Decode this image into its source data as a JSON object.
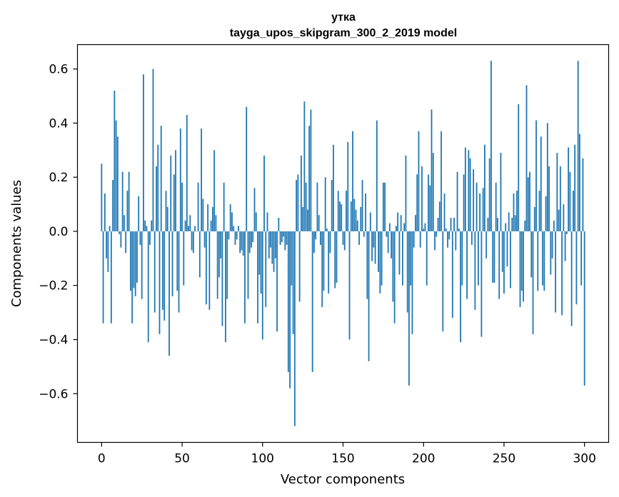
{
  "chart_data": {
    "type": "bar",
    "title": "утка",
    "subtitle": "tayga_upos_skipgram_300_2_2019 model",
    "xlabel": "Vector components",
    "ylabel": "Components values",
    "xlim": [
      -15,
      315
    ],
    "ylim": [
      -0.78,
      0.69
    ],
    "xticks": [
      0,
      50,
      100,
      150,
      200,
      250,
      300
    ],
    "yticks": [
      -0.6,
      -0.4,
      -0.2,
      0.0,
      0.2,
      0.4,
      0.6
    ],
    "ytick_labels": [
      "−0.6",
      "−0.4",
      "−0.2",
      "0.0",
      "0.2",
      "0.4",
      "0.6"
    ],
    "bar_color": "#1f77b4",
    "grid": false,
    "values": [
      0.25,
      -0.34,
      0.14,
      -0.1,
      -0.15,
      0.02,
      -0.34,
      0.19,
      0.52,
      0.41,
      0.35,
      -0.01,
      -0.06,
      0.22,
      0.06,
      -0.08,
      0.15,
      0.22,
      -0.22,
      -0.34,
      -0.21,
      -0.24,
      -0.19,
      0.13,
      -0.05,
      -0.25,
      0.58,
      0.04,
      0.02,
      -0.41,
      -0.05,
      0.04,
      0.6,
      -0.3,
      0.24,
      0.32,
      -0.38,
      0.39,
      -0.29,
      -0.33,
      0.15,
      0.09,
      -0.46,
      0.28,
      -0.24,
      0.21,
      0.3,
      -0.22,
      -0.3,
      0.38,
      0.18,
      -0.2,
      0.04,
      0.43,
      0.02,
      0.06,
      -0.07,
      -0.08,
      0.02,
      0.0,
      0.18,
      -0.17,
      0.38,
      0.12,
      -0.06,
      -0.27,
      0.1,
      -0.29,
      0.04,
      0.09,
      0.3,
      0.06,
      -0.25,
      -0.17,
      -0.1,
      -0.35,
      0.18,
      -0.41,
      -0.25,
      -0.03,
      0.1,
      0.07,
      0.02,
      -0.05,
      -0.03,
      0.02,
      -0.08,
      -0.07,
      -0.09,
      -0.34,
      0.46,
      -0.25,
      -0.08,
      -0.06,
      -0.04,
      0.16,
      0.07,
      -0.34,
      -0.16,
      -0.23,
      -0.4,
      0.28,
      -0.28,
      0.07,
      -0.1,
      -0.06,
      -0.12,
      -0.15,
      -0.1,
      -0.37,
      0.05,
      -0.05,
      -0.04,
      -0.02,
      -0.07,
      -0.05,
      -0.52,
      -0.58,
      -0.2,
      -0.38,
      -0.72,
      0.19,
      0.21,
      -0.26,
      0.28,
      0.09,
      0.48,
      0.18,
      0.08,
      0.39,
      0.45,
      -0.52,
      -0.08,
      -0.03,
      0.18,
      0.06,
      -0.05,
      -0.28,
      -0.22,
      0.2,
      0.01,
      -0.23,
      -0.08,
      0.19,
      0.32,
      -0.21,
      -0.19,
      0.15,
      0.11,
      0.1,
      -0.05,
      -0.07,
      0.15,
      0.33,
      -0.4,
      0.11,
      0.37,
      0.12,
      0.08,
      0.04,
      -0.05,
      0.09,
      0.19,
      -0.02,
      0.14,
      -0.25,
      -0.48,
      0.07,
      -0.11,
      -0.06,
      -0.12,
      0.41,
      -0.15,
      -0.23,
      -0.2,
      0.18,
      0.18,
      -0.02,
      -0.08,
      0.03,
      -0.1,
      -0.26,
      -0.34,
      0.02,
      0.07,
      -0.16,
      0.06,
      -0.2,
      0.03,
      0.28,
      -0.3,
      -0.57,
      -0.2,
      -0.38,
      -0.06,
      0.06,
      0.21,
      0.37,
      -0.06,
      0.24,
      0.01,
      0.03,
      -0.2,
      0.21,
      0.17,
      0.45,
      0.29,
      -0.07,
      -0.02,
      0.05,
      0.11,
      0.37,
      -0.37,
      0.14,
      0.01,
      -0.06,
      -0.03,
      0.05,
      -0.32,
      0.05,
      -0.07,
      0.22,
      0.01,
      -0.41,
      -0.2,
      0.21,
      0.31,
      -0.25,
      0.3,
      0.27,
      -0.05,
      0.23,
      -0.29,
      0.18,
      -0.2,
      0.14,
      -0.39,
      0.16,
      0.32,
      -0.1,
      0.05,
      0.27,
      0.63,
      -0.19,
      -0.19,
      0.18,
      0.05,
      -0.25,
      0.29,
      -0.15,
      -0.23,
      0.03,
      -0.13,
      0.07,
      -0.21,
      0.05,
      0.14,
      0.06,
      0.15,
      0.47,
      -0.28,
      -0.22,
      -0.26,
      0.04,
      0.54,
      0.2,
      0.22,
      -0.17,
      -0.38,
      0.09,
      0.41,
      -0.22,
      0.15,
      0.35,
      -0.2,
      -0.22,
      0.13,
      0.4,
      0.24,
      -0.16,
      -0.1,
      0.04,
      -0.3,
      0.29,
      0.08,
      0.24,
      -0.31,
      0.1,
      -0.11,
      -0.01,
      0.31,
      0.22,
      -0.35,
      0.15,
      0.32,
      -0.27,
      0.63,
      0.36,
      -0.2,
      0.27,
      -0.57
    ]
  }
}
